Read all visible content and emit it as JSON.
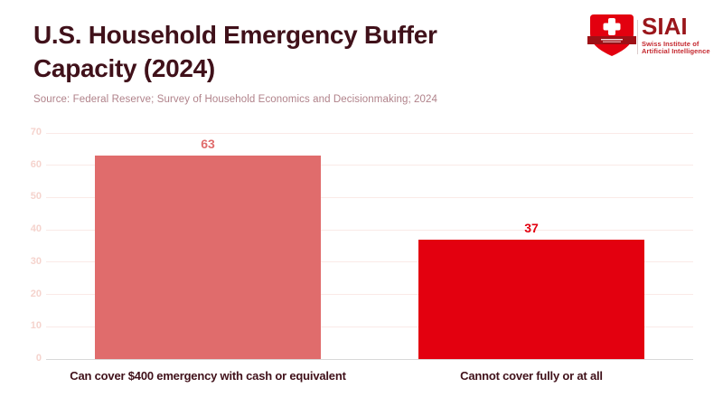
{
  "header": {
    "title_line1": "U.S. Household Emergency Buffer",
    "title_line2": "Capacity (2024)",
    "title_color": "#40111a",
    "source": "Source: Federal Reserve; Survey of Household Economics and Decisionmaking; 2024",
    "source_color": "#b0828a"
  },
  "logo": {
    "name": "SIAI",
    "subtitle_line1": "Swiss Institute of",
    "subtitle_line2": "Artificial Intelligence",
    "name_color": "#9a161b",
    "subtitle_color": "#c4272e",
    "shield_color": "#e3000f",
    "ribbon_color": "#9e1016",
    "cross_color": "#ffffff"
  },
  "chart_data": {
    "type": "bar",
    "title": "U.S. Household Emergency Buffer Capacity (2024)",
    "categories": [
      "Can cover $400 emergency with cash or equivalent",
      "Cannot cover fully or at all"
    ],
    "values": [
      63,
      37
    ],
    "bar_colors": [
      "#e06c6c",
      "#e3000f"
    ],
    "value_label_colors": [
      "#e06c6c",
      "#e3000f"
    ],
    "ylim": [
      0,
      70
    ],
    "yticks": [
      0,
      10,
      20,
      30,
      40,
      50,
      60,
      70
    ],
    "grid": true,
    "legend": false,
    "gridline_color": "#faeae7",
    "baseline_color": "#d9d9d9",
    "ytick_color": "#f5d3cd",
    "category_color": "#40111a",
    "xlabel": "",
    "ylabel": ""
  }
}
